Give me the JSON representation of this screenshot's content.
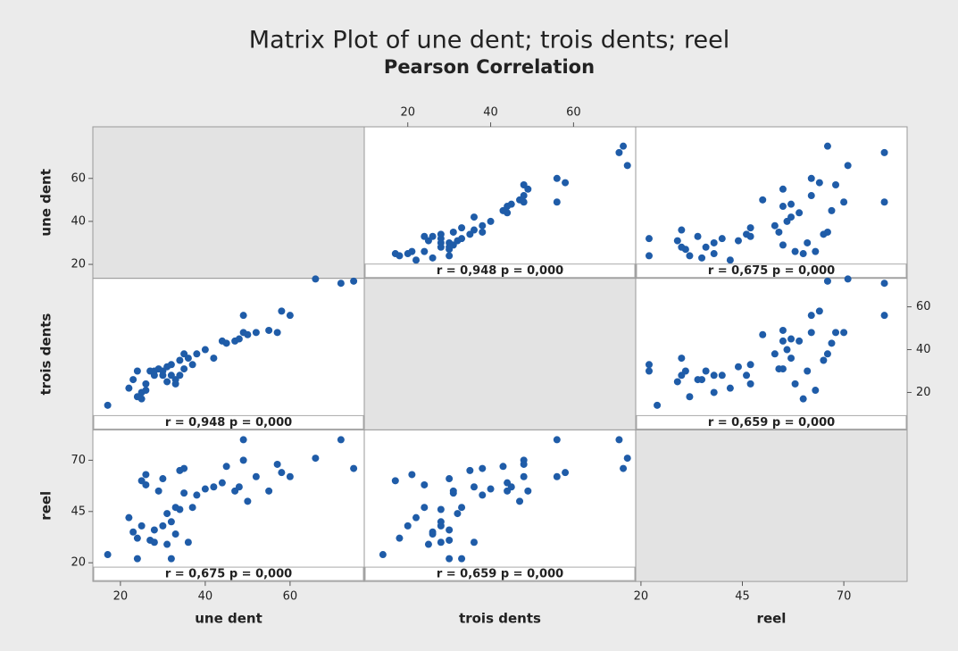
{
  "chart_data": {
    "type": "scatter_matrix",
    "title": "Matrix Plot of une dent; trois dents; reel",
    "subtitle": "Pearson Correlation",
    "color": "#1f5ca8",
    "variables": [
      {
        "name": "une dent",
        "xlim": [
          13.5,
          77.5
        ],
        "ylim": [
          13.5,
          84
        ],
        "ticks": [
          20,
          40,
          60
        ],
        "values": [
          17,
          22,
          23,
          24,
          24,
          25,
          25,
          26,
          26,
          27,
          28,
          29,
          30,
          31,
          31,
          32,
          32,
          33,
          34,
          34,
          35,
          35,
          36,
          37,
          38,
          40,
          42,
          44,
          45,
          47,
          48,
          49,
          49,
          50,
          52,
          55,
          57,
          58,
          60,
          66,
          72,
          75,
          30,
          33,
          28
        ]
      },
      {
        "name": "trois dents",
        "xlim": [
          9.5,
          75
        ],
        "ylim": [
          2.5,
          73.3
        ],
        "ticks": [
          20,
          40,
          60
        ],
        "values": [
          14,
          22,
          26,
          18,
          30,
          20,
          17,
          21,
          24,
          30,
          28,
          31,
          30,
          25,
          32,
          28,
          33,
          26,
          35,
          28,
          38,
          31,
          36,
          33,
          38,
          40,
          36,
          44,
          43,
          44,
          45,
          48,
          56,
          47,
          48,
          49,
          48,
          58,
          56,
          73,
          71,
          72,
          28,
          24,
          30
        ]
      },
      {
        "name": "reel",
        "xlim": [
          18.7,
          85.6
        ],
        "ylim": [
          10.9,
          84.8
        ],
        "ticks": [
          20,
          45,
          70
        ],
        "values": [
          24,
          42,
          35,
          32,
          22,
          38,
          60,
          63,
          58,
          31,
          30,
          55,
          61,
          29,
          44,
          40,
          22,
          34,
          65,
          46,
          66,
          54,
          30,
          47,
          53,
          56,
          57,
          59,
          67,
          55,
          57,
          70,
          80,
          50,
          62,
          55,
          68,
          64,
          62,
          71,
          80,
          66,
          38,
          47,
          36
        ]
      }
    ],
    "correlations": [
      {
        "r": 0.948,
        "p": 0,
        "label": "r = 0,948  p = 0,000"
      },
      {
        "r": 0.675,
        "p": 0,
        "label": "r = 0,675  p = 0,000"
      },
      {
        "r": 0.659,
        "p": 0,
        "label": "r = 0,659  p = 0,000"
      }
    ]
  }
}
